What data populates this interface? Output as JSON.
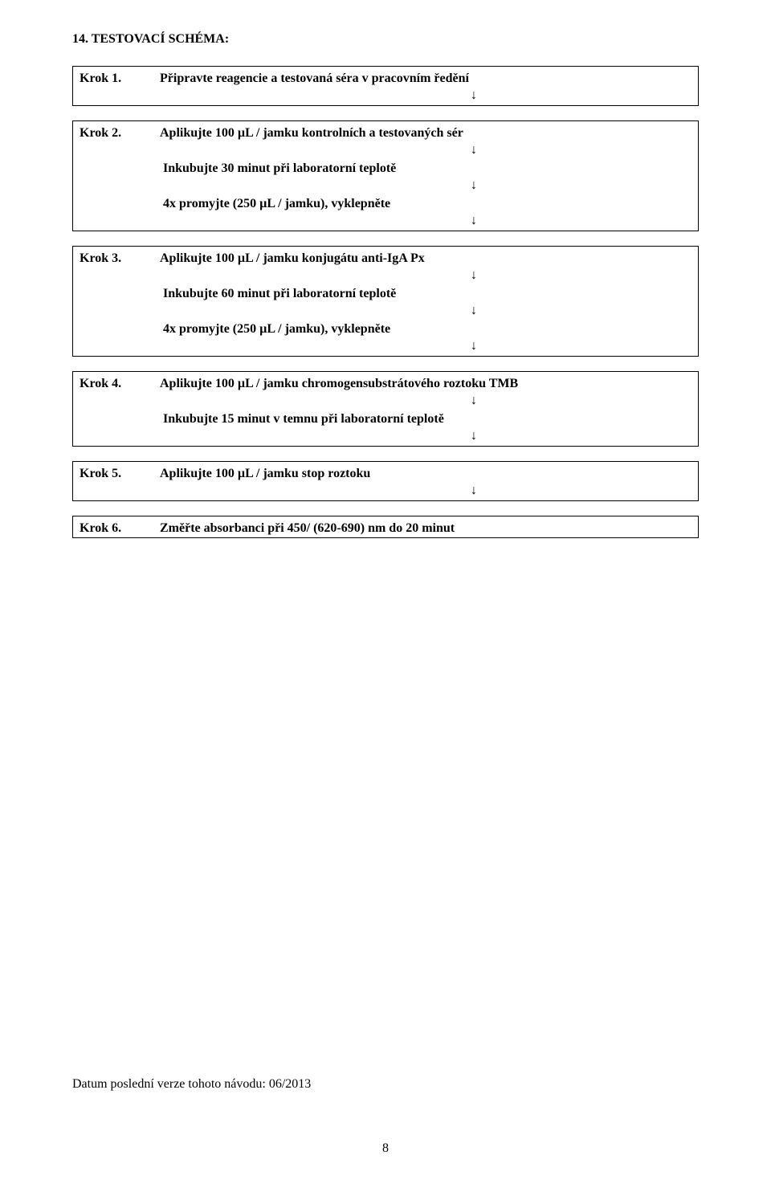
{
  "heading": "14.  TESTOVACÍ SCHÉMA:",
  "arrow": "↓",
  "block1": {
    "label": "Krok 1.",
    "text": "Připravte reagencie a testovaná séra v pracovním ředění"
  },
  "block2": {
    "label": "Krok 2.",
    "text": "Aplikujte 100 µL / jamku kontrolních a testovaných sér",
    "sub1": "Inkubujte 30 minut při laboratorní teplotě",
    "sub2": "4x promyjte (250 µL / jamku), vyklepněte"
  },
  "block3": {
    "label": "Krok 3.",
    "text": "Aplikujte 100 µL / jamku konjugátu anti-IgA Px",
    "sub1": "Inkubujte 60 minut při laboratorní teplotě",
    "sub2": "4x promyjte (250 µL / jamku), vyklepněte"
  },
  "block4": {
    "label": "Krok 4.",
    "text": "Aplikujte 100 µL / jamku chromogensubstrátového roztoku TMB",
    "sub1": "Inkubujte 15 minut v temnu při laboratorní teplotě"
  },
  "block5": {
    "label": "Krok 5.",
    "text": "Aplikujte 100 µL / jamku stop roztoku"
  },
  "block6": {
    "label": "Krok 6.",
    "text": "Změřte absorbanci při 450/ (620-690) nm do 20 minut"
  },
  "footer": "Datum poslední verze tohoto návodu: 06/2013",
  "pageNumber": "8"
}
